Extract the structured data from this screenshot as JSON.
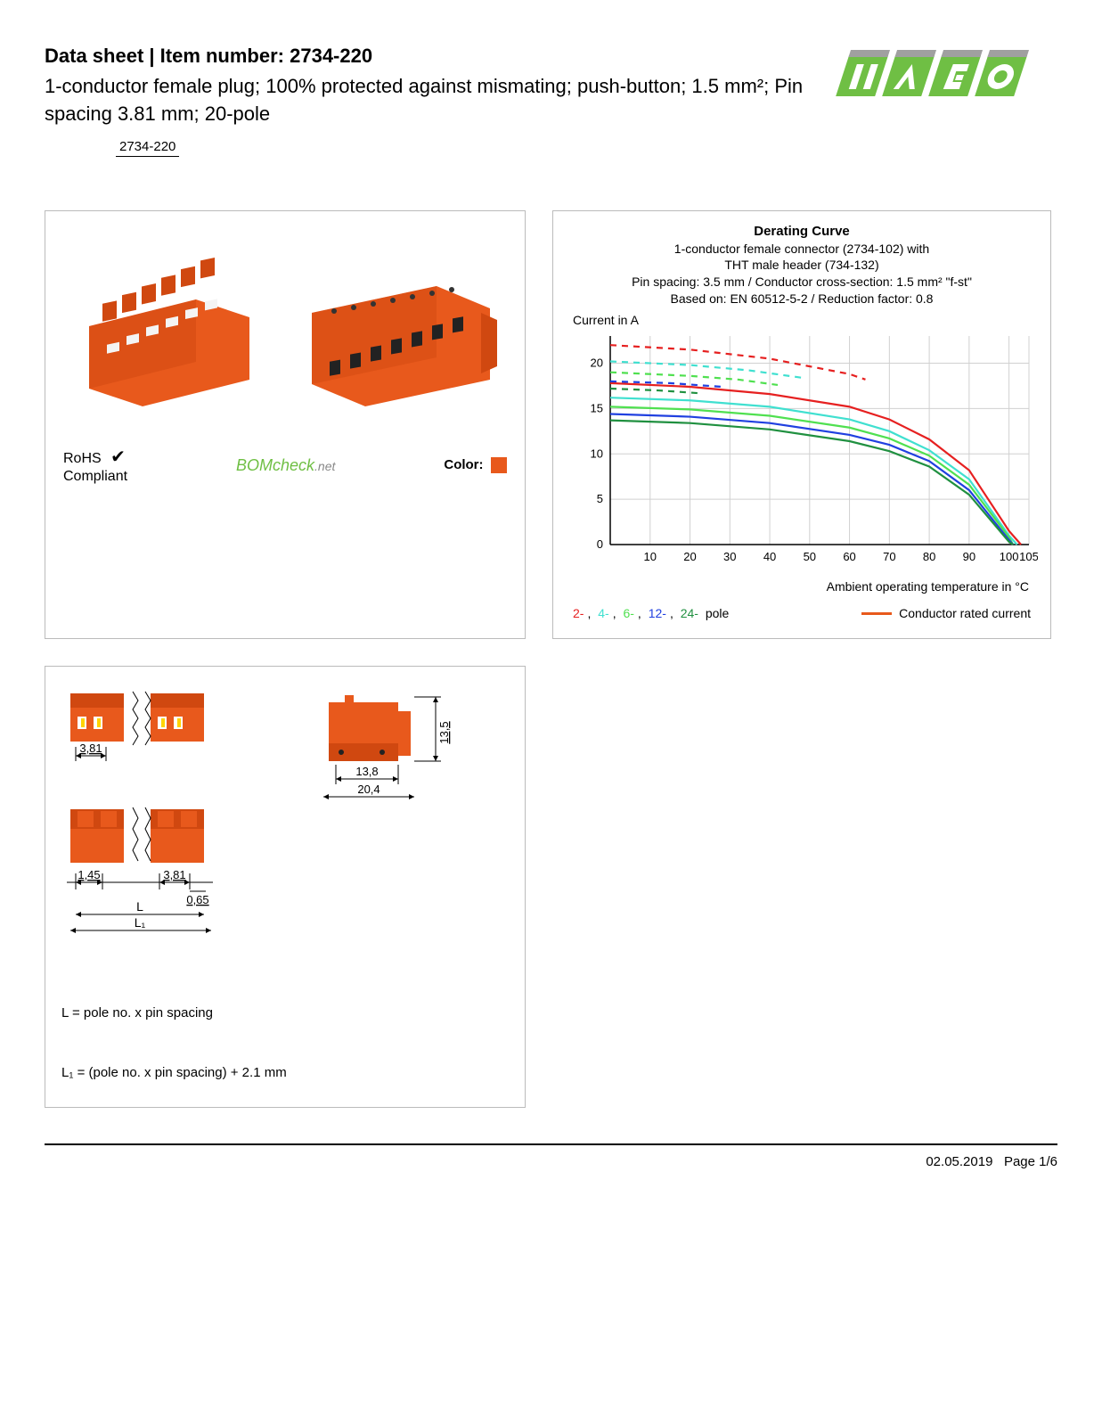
{
  "header": {
    "title_prefix": "Data sheet  |  Item number: ",
    "item_number": "2734-220",
    "subtitle": "1-conductor female plug; 100% protected against mismating; push-button; 1.5 mm²; Pin spacing 3.81 mm; 20-pole",
    "badge": "2734-220"
  },
  "logo": {
    "text": "WAGO",
    "primary_color": "#6fbf44",
    "accent_color": "#a0a0a0"
  },
  "product": {
    "color": "#e8591c",
    "accent": "#d04810"
  },
  "compliance": {
    "rohs_line1": "RoHS",
    "rohs_line2": "Compliant",
    "check": "✔",
    "bomcheck": "BOMcheck",
    "bomcheck_suffix": ".net",
    "color_label": "Color:",
    "color_hex": "#e8591c"
  },
  "chart": {
    "title": "Derating Curve",
    "sub1": "1-conductor female connector (2734-102) with",
    "sub2": "THT male header (734-132)",
    "sub3": "Pin spacing: 3.5 mm / Conductor cross-section: 1.5 mm² \"f-st\"",
    "sub4": "Based on: EN 60512-5-2 / Reduction factor: 0.8",
    "y_label": "Current in A",
    "x_label": "Ambient operating temperature in °C",
    "x_ticks": [
      10,
      20,
      30,
      40,
      50,
      60,
      70,
      80,
      90,
      100,
      105
    ],
    "y_ticks": [
      0,
      5,
      10,
      15,
      20
    ],
    "xlim": [
      0,
      105
    ],
    "ylim": [
      0,
      23
    ],
    "grid_color": "#d0d0d0",
    "axis_color": "#000000",
    "background": "#ffffff",
    "tick_fontsize": 13,
    "series": [
      {
        "name": "2-pole-dash",
        "color": "#e62020",
        "dash": true,
        "pts": [
          [
            0,
            22
          ],
          [
            20,
            21.5
          ],
          [
            40,
            20.5
          ],
          [
            60,
            18.8
          ],
          [
            64,
            18.2
          ]
        ]
      },
      {
        "name": "2-pole",
        "color": "#e62020",
        "dash": false,
        "pts": [
          [
            0,
            17.8
          ],
          [
            20,
            17.4
          ],
          [
            40,
            16.6
          ],
          [
            60,
            15.2
          ],
          [
            70,
            13.8
          ],
          [
            80,
            11.6
          ],
          [
            90,
            8.2
          ],
          [
            100,
            1.5
          ],
          [
            103,
            0
          ]
        ]
      },
      {
        "name": "4-pole-dash",
        "color": "#40e0d0",
        "dash": true,
        "pts": [
          [
            0,
            20.2
          ],
          [
            20,
            19.8
          ],
          [
            35,
            19.2
          ],
          [
            48,
            18.4
          ]
        ]
      },
      {
        "name": "4-pole",
        "color": "#40e0d0",
        "dash": false,
        "pts": [
          [
            0,
            16.2
          ],
          [
            20,
            15.9
          ],
          [
            40,
            15.2
          ],
          [
            60,
            13.8
          ],
          [
            70,
            12.5
          ],
          [
            80,
            10.4
          ],
          [
            90,
            7.2
          ],
          [
            100,
            1.0
          ],
          [
            102,
            0
          ]
        ]
      },
      {
        "name": "6-pole-dash",
        "color": "#50e050",
        "dash": true,
        "pts": [
          [
            0,
            19.0
          ],
          [
            20,
            18.6
          ],
          [
            32,
            18.2
          ],
          [
            42,
            17.6
          ]
        ]
      },
      {
        "name": "6-pole",
        "color": "#50e050",
        "dash": false,
        "pts": [
          [
            0,
            15.2
          ],
          [
            20,
            14.9
          ],
          [
            40,
            14.2
          ],
          [
            60,
            12.9
          ],
          [
            70,
            11.7
          ],
          [
            80,
            9.8
          ],
          [
            90,
            6.6
          ],
          [
            100,
            0.8
          ],
          [
            101,
            0
          ]
        ]
      },
      {
        "name": "12-pole-dash",
        "color": "#2040e0",
        "dash": true,
        "pts": [
          [
            0,
            18.0
          ],
          [
            15,
            17.8
          ],
          [
            28,
            17.4
          ]
        ]
      },
      {
        "name": "12-pole",
        "color": "#2040e0",
        "dash": false,
        "pts": [
          [
            0,
            14.4
          ],
          [
            20,
            14.1
          ],
          [
            40,
            13.4
          ],
          [
            60,
            12.1
          ],
          [
            70,
            11.0
          ],
          [
            80,
            9.2
          ],
          [
            90,
            6.0
          ],
          [
            100,
            0.5
          ],
          [
            101,
            0
          ]
        ]
      },
      {
        "name": "24-pole-dash",
        "color": "#209040",
        "dash": true,
        "pts": [
          [
            0,
            17.2
          ],
          [
            12,
            17.0
          ],
          [
            22,
            16.7
          ]
        ]
      },
      {
        "name": "24-pole",
        "color": "#209040",
        "dash": false,
        "pts": [
          [
            0,
            13.7
          ],
          [
            20,
            13.4
          ],
          [
            40,
            12.7
          ],
          [
            60,
            11.4
          ],
          [
            70,
            10.3
          ],
          [
            80,
            8.6
          ],
          [
            90,
            5.5
          ],
          [
            100,
            0.3
          ],
          [
            101,
            0
          ]
        ]
      }
    ],
    "legend_poles": [
      {
        "label": "2-",
        "color": "#e62020"
      },
      {
        "label": "4-",
        "color": "#40e0d0"
      },
      {
        "label": "6-",
        "color": "#50e050"
      },
      {
        "label": "12-",
        "color": "#2040e0"
      },
      {
        "label": "24-",
        "color": "#209040"
      }
    ],
    "legend_suffix": " pole",
    "legend_right_label": "Conductor rated current",
    "legend_right_color": "#e8591c"
  },
  "dimensions": {
    "color": "#e8591c",
    "accent": "#d04810",
    "vals": {
      "pin_spacing": "3,81",
      "w1": "13,8",
      "w2": "20,4",
      "h": "13,5",
      "a": "1,45",
      "b": "3,81",
      "c": "0,65",
      "L": "L",
      "L1": "L₁"
    },
    "note1": "L = pole no. x pin spacing",
    "note2": "L₁ = (pole no. x pin spacing) + 2.1 mm"
  },
  "footer": {
    "date": "02.05.2019",
    "page": "Page 1/6"
  }
}
